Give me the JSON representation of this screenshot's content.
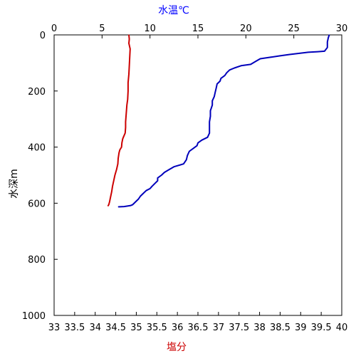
{
  "chart_data": {
    "type": "line",
    "top_axis": {
      "label": "水温℃",
      "label_color": "#0000ff",
      "range": [
        0,
        30
      ],
      "ticks": [
        "0",
        "5",
        "10",
        "15",
        "20",
        "25",
        "30"
      ]
    },
    "bottom_axis": {
      "label": "塩分",
      "label_color": "#cc0000",
      "range": [
        33,
        40
      ],
      "ticks": [
        "33",
        "33.5",
        "34",
        "34.5",
        "35",
        "35.5",
        "36",
        "36.5",
        "37",
        "37.5",
        "38",
        "38.5",
        "39",
        "39.5",
        "40"
      ]
    },
    "left_axis": {
      "label": "水深m",
      "range": [
        0,
        1000
      ],
      "inverted": true,
      "ticks": [
        "0",
        "200",
        "400",
        "600",
        "800",
        "1000"
      ]
    },
    "series": [
      {
        "color": "#0000bb",
        "axis": "top",
        "points": [
          [
            28.7,
            0
          ],
          [
            28.6,
            10
          ],
          [
            28.5,
            25
          ],
          [
            28.5,
            45
          ],
          [
            28.2,
            58
          ],
          [
            27.5,
            60
          ],
          [
            26.5,
            62
          ],
          [
            25.5,
            66
          ],
          [
            24.5,
            70
          ],
          [
            23.5,
            75
          ],
          [
            22.5,
            80
          ],
          [
            21.5,
            85
          ],
          [
            21,
            95
          ],
          [
            20.5,
            105
          ],
          [
            19.5,
            110
          ],
          [
            18.8,
            118
          ],
          [
            18.3,
            125
          ],
          [
            18,
            135
          ],
          [
            17.8,
            145
          ],
          [
            17.4,
            155
          ],
          [
            17.3,
            165
          ],
          [
            17.0,
            175
          ],
          [
            16.9,
            190
          ],
          [
            16.8,
            205
          ],
          [
            16.7,
            220
          ],
          [
            16.5,
            235
          ],
          [
            16.5,
            250
          ],
          [
            16.4,
            260
          ],
          [
            16.3,
            270
          ],
          [
            16.3,
            290
          ],
          [
            16.2,
            310
          ],
          [
            16.2,
            330
          ],
          [
            16.2,
            350
          ],
          [
            16.0,
            365
          ],
          [
            15.4,
            375
          ],
          [
            15.0,
            385
          ],
          [
            14.9,
            395
          ],
          [
            14.5,
            405
          ],
          [
            14.1,
            415
          ],
          [
            13.9,
            430
          ],
          [
            13.8,
            445
          ],
          [
            13.5,
            460
          ],
          [
            12.5,
            470
          ],
          [
            12.0,
            480
          ],
          [
            11.5,
            490
          ],
          [
            11.2,
            500
          ],
          [
            10.8,
            510
          ],
          [
            10.8,
            520
          ],
          [
            10.5,
            530
          ],
          [
            10.2,
            540
          ],
          [
            10.0,
            548
          ],
          [
            9.6,
            555
          ],
          [
            9.3,
            565
          ],
          [
            9.0,
            575
          ],
          [
            8.8,
            585
          ],
          [
            8.5,
            595
          ],
          [
            8.2,
            605
          ],
          [
            8.0,
            608
          ],
          [
            7.3,
            612
          ],
          [
            6.7,
            613
          ]
        ]
      },
      {
        "color": "#cc0000",
        "axis": "bottom",
        "points": [
          [
            34.82,
            0
          ],
          [
            34.83,
            15
          ],
          [
            34.82,
            30
          ],
          [
            34.85,
            50
          ],
          [
            34.84,
            80
          ],
          [
            34.83,
            110
          ],
          [
            34.82,
            140
          ],
          [
            34.8,
            170
          ],
          [
            34.8,
            200
          ],
          [
            34.79,
            230
          ],
          [
            34.77,
            250
          ],
          [
            34.76,
            270
          ],
          [
            34.75,
            290
          ],
          [
            34.74,
            310
          ],
          [
            34.74,
            330
          ],
          [
            34.73,
            350
          ],
          [
            34.7,
            360
          ],
          [
            34.67,
            370
          ],
          [
            34.65,
            385
          ],
          [
            34.64,
            400
          ],
          [
            34.6,
            410
          ],
          [
            34.58,
            420
          ],
          [
            34.56,
            440
          ],
          [
            34.55,
            460
          ],
          [
            34.52,
            480
          ],
          [
            34.48,
            500
          ],
          [
            34.45,
            520
          ],
          [
            34.42,
            540
          ],
          [
            34.4,
            560
          ],
          [
            34.37,
            580
          ],
          [
            34.35,
            595
          ],
          [
            34.33,
            605
          ],
          [
            34.31,
            610
          ]
        ]
      }
    ],
    "grid": false
  }
}
